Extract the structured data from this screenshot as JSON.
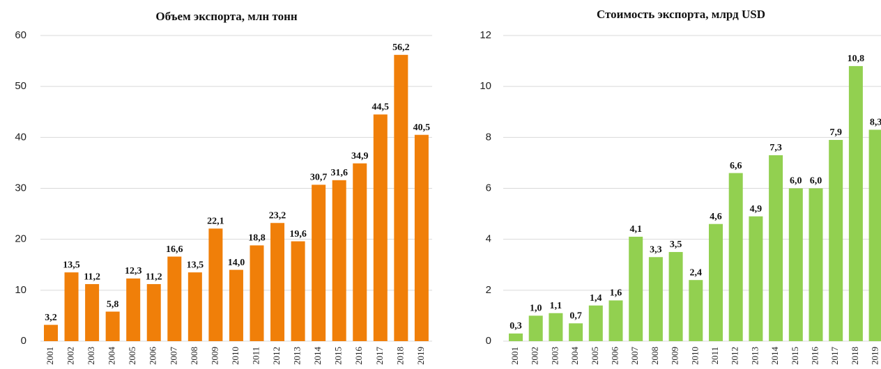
{
  "chart_data": [
    {
      "type": "bar",
      "title": "Объем экспорта, млн тонн",
      "categories": [
        "2001",
        "2002",
        "2003",
        "2004",
        "2005",
        "2006",
        "2007",
        "2008",
        "2009",
        "2010",
        "2011",
        "2012",
        "2013",
        "2014",
        "2015",
        "2016",
        "2017",
        "2018",
        "2019"
      ],
      "values": [
        3.2,
        13.5,
        11.2,
        5.8,
        12.3,
        11.2,
        16.6,
        13.5,
        22.1,
        14.0,
        18.8,
        23.2,
        19.6,
        30.7,
        31.6,
        34.9,
        44.5,
        56.2,
        40.5
      ],
      "value_labels": [
        "3,2",
        "13,5",
        "11,2",
        "5,8",
        "12,3",
        "11,2",
        "16,6",
        "13,5",
        "22,1",
        "14,0",
        "18,8",
        "23,2",
        "19,6",
        "30,7",
        "31,6",
        "34,9",
        "44,5",
        "56,2",
        "40,5"
      ],
      "color": "#f07f09",
      "ylim": [
        0,
        60
      ],
      "yticks": [
        0,
        10,
        20,
        30,
        40,
        50,
        60
      ],
      "grid": true
    },
    {
      "type": "bar",
      "title": "Стоимость экспорта, млрд USD",
      "categories": [
        "2001",
        "2002",
        "2003",
        "2004",
        "2005",
        "2006",
        "2007",
        "2008",
        "2009",
        "2010",
        "2011",
        "2012",
        "2013",
        "2014",
        "2015",
        "2016",
        "2017",
        "2018",
        "2019"
      ],
      "values": [
        0.3,
        1.0,
        1.1,
        0.7,
        1.4,
        1.6,
        4.1,
        3.3,
        3.5,
        2.4,
        4.6,
        6.6,
        4.9,
        7.3,
        6.0,
        6.0,
        7.9,
        10.8,
        8.3
      ],
      "value_labels": [
        "0,3",
        "1,0",
        "1,1",
        "0,7",
        "1,4",
        "1,6",
        "4,1",
        "3,3",
        "3,5",
        "2,4",
        "4,6",
        "6,6",
        "4,9",
        "7,3",
        "6,0",
        "6,0",
        "7,9",
        "10,8",
        "8,3"
      ],
      "color": "#92d050",
      "ylim": [
        0,
        12
      ],
      "yticks": [
        0,
        2,
        4,
        6,
        8,
        10,
        12
      ],
      "grid": true
    }
  ]
}
